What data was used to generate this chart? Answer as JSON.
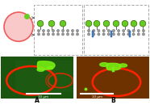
{
  "bg_color": "#ffffff",
  "vesicle_fill": "#f9c0c0",
  "vesicle_edge": "#ee4444",
  "green_protein": "#66cc22",
  "blue_anchor": "#4488cc",
  "membrane_head": "#888888",
  "membrane_tail": "#aaaaaa",
  "panel_A_bg": "#1a5510",
  "panel_B_bg": "#7a3800",
  "vesicle_A_color": "#ff3300",
  "vesicle_B_color": "#ff3300",
  "green_blob": "#88ff22",
  "scale_color": "#ffffff",
  "label_A": "A",
  "label_B": "B",
  "scale_text": "10 μm",
  "arrow_color": "#555555",
  "box_color": "#aaaaaa"
}
